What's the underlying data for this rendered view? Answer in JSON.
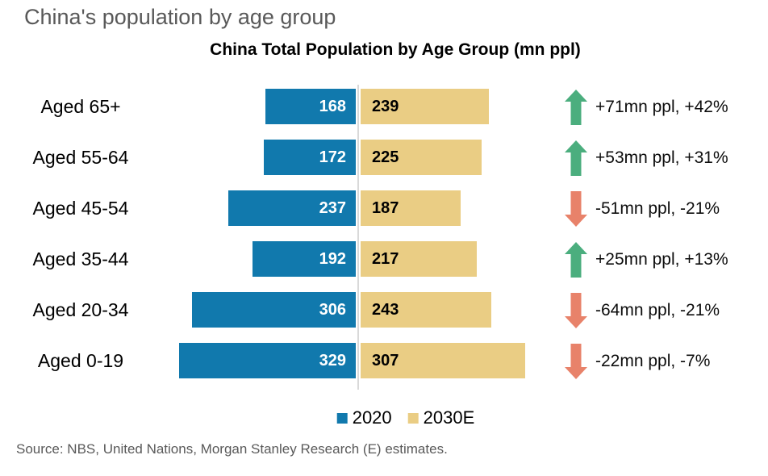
{
  "page_title": "China's population by age group",
  "chart_data": {
    "type": "bar",
    "orientation": "horizontal-diverging",
    "title": "China Total Population by Age Group (mn ppl)",
    "unit": "mn ppl",
    "categories": [
      "Aged 65+",
      "Aged 55-64",
      "Aged 45-54",
      "Aged 35-44",
      "Aged 20-34",
      "Aged 0-19"
    ],
    "series": [
      {
        "name": "2020",
        "color": "#1179ad",
        "values": [
          168,
          172,
          237,
          192,
          306,
          329
        ]
      },
      {
        "name": "2030E",
        "color": "#eacd84",
        "values": [
          239,
          225,
          187,
          217,
          243,
          307
        ]
      }
    ],
    "changes": [
      {
        "direction": "up",
        "label": "+71mn ppl, +42%"
      },
      {
        "direction": "up",
        "label": "+53mn ppl, +31%"
      },
      {
        "direction": "down",
        "label": "-51mn ppl, -21%"
      },
      {
        "direction": "up",
        "label": "+25mn ppl, +13%"
      },
      {
        "direction": "down",
        "label": "-64mn ppl, -21%"
      },
      {
        "direction": "down",
        "label": "-22mn ppl, -7%"
      }
    ],
    "legend": [
      "2020",
      "2030E"
    ],
    "legend_position": "bottom",
    "colors": {
      "up_arrow": "#4bae7e",
      "down_arrow": "#e8826a",
      "axis_line": "#d9d9d9",
      "bar_value_2020_text": "#ffffff",
      "bar_value_2030_text": "#000000"
    }
  },
  "source": "Source: NBS, United Nations, Morgan Stanley Research (E) estimates."
}
